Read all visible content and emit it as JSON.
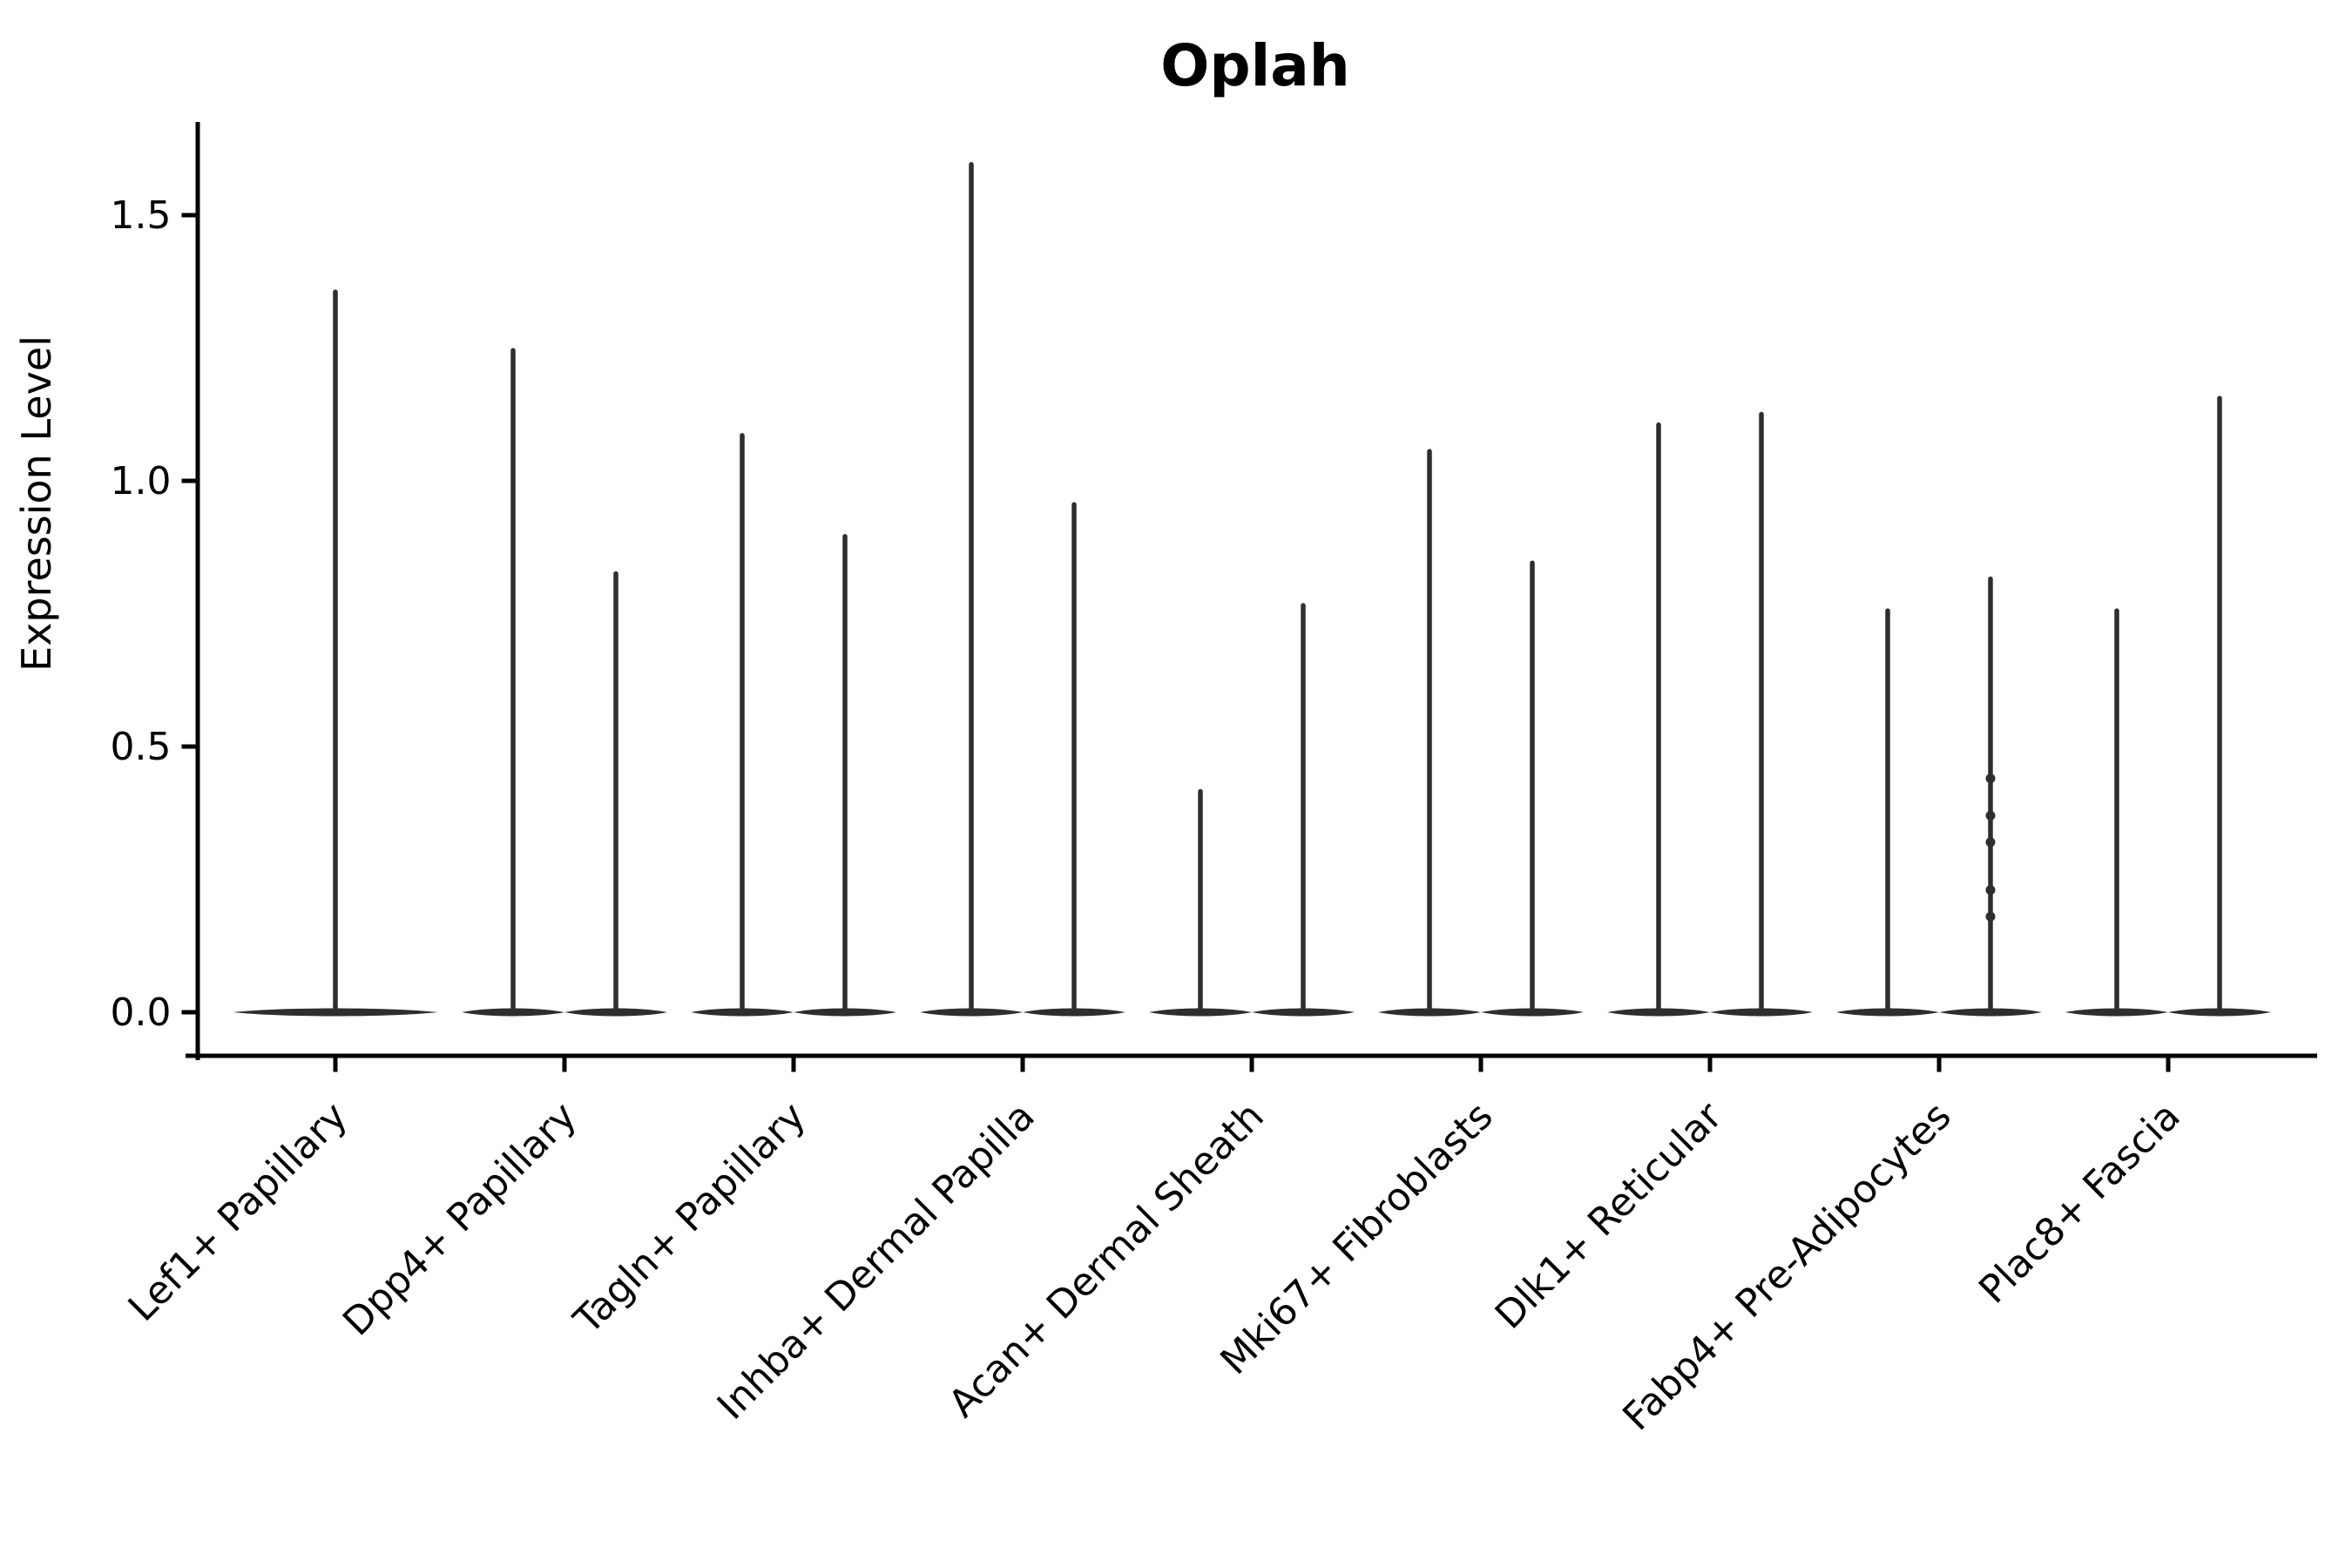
{
  "title": "Oplah",
  "axes": {
    "y": {
      "label": "Expression Level",
      "ticks": [
        "0.0",
        "0.5",
        "1.0",
        "1.5"
      ],
      "tick_values": [
        0.0,
        0.5,
        1.0,
        1.5
      ],
      "range": [
        0.0,
        1.67
      ]
    },
    "x": {
      "categories": [
        "Lef1+ Papillary",
        "Dpp4+ Papillary",
        "Tagln+ Papillary",
        "Inhba+ Dermal Papilla",
        "Acan+ Dermal Sheath",
        "Mki67+ Fibroblasts",
        "Dlk1+ Reticular",
        "Fabp4+ Pre-Adipocytes",
        "Plac8+ Fascia"
      ]
    }
  },
  "chart_data": {
    "type": "violin",
    "title": "Oplah",
    "xlabel": "",
    "ylabel": "Expression Level",
    "ylim": [
      0.0,
      1.67
    ],
    "yticks": [
      0.0,
      0.5,
      1.0,
      1.5
    ],
    "grid": false,
    "legend": null,
    "description": "Thin spike violins: expression is near zero for most cells; each violin is a flat base at 0 with a narrow tail up to its max expression value. Two violins per category (first category has one merged/centered violin).",
    "categories": [
      "Lef1+ Papillary",
      "Dpp4+ Papillary",
      "Tagln+ Papillary",
      "Inhba+ Dermal Papilla",
      "Acan+ Dermal Sheath",
      "Mki67+ Fibroblasts",
      "Dlk1+ Reticular",
      "Fabp4+ Pre-Adipocytes",
      "Plac8+ Fascia"
    ],
    "series": [
      {
        "category": "Lef1+ Papillary",
        "violin_max": [
          1.36
        ]
      },
      {
        "category": "Dpp4+ Papillary",
        "violin_max": [
          1.25,
          0.83
        ]
      },
      {
        "category": "Tagln+ Papillary",
        "violin_max": [
          1.09,
          0.9
        ]
      },
      {
        "category": "Inhba+ Dermal Papilla",
        "violin_max": [
          1.6,
          0.96
        ]
      },
      {
        "category": "Acan+ Dermal Sheath",
        "violin_max": [
          0.42,
          0.77
        ]
      },
      {
        "category": "Mki67+ Fibroblasts",
        "violin_max": [
          1.06,
          0.85
        ]
      },
      {
        "category": "Dlk1+ Reticular",
        "violin_max": [
          1.11,
          1.13
        ]
      },
      {
        "category": "Fabp4+ Pre-Adipocytes",
        "violin_max": [
          0.76,
          0.82
        ],
        "points": {
          "violin_index": 1,
          "values": [
            0.44,
            0.37,
            0.32,
            0.23,
            0.18
          ]
        }
      },
      {
        "category": "Plac8+ Fascia",
        "violin_max": [
          0.76,
          1.16
        ]
      }
    ],
    "colors": {
      "violin": "#2e2e2e",
      "axis": "#000000",
      "background": "#ffffff"
    }
  }
}
